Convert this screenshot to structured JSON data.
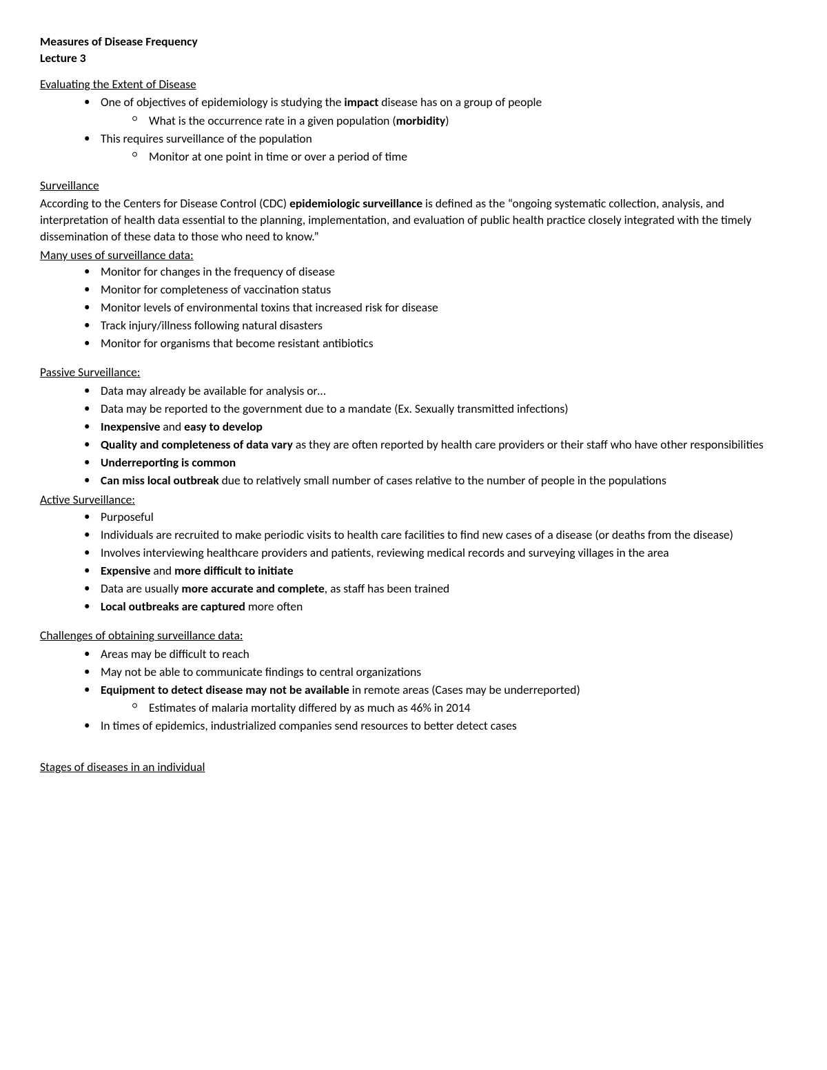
{
  "title": "Measures of Disease Frequency",
  "subtitle": "Lecture 3",
  "sections": {
    "evaluating": {
      "heading": "Evaluating the Extent of Disease",
      "b1_pre": "One of objectives of epidemiology is studying the ",
      "b1_bold": "impact",
      "b1_post": " disease has on a group of people",
      "b1_s1_pre": "What is the occurrence rate in a given population (",
      "b1_s1_bold": "morbidity",
      "b1_s1_post": ")",
      "b2": "This requires surveillance of the population",
      "b2_s1": "Monitor at one point in time or over a period of time"
    },
    "surveillance": {
      "heading": "Surveillance",
      "p_pre": "According to the Centers for Disease Control (CDC) ",
      "p_bold": "epidemiologic surveillance",
      "p_post": " is defined as the “ongoing systematic collection, analysis, and interpretation of health data essential to the planning, implementation, and evaluation of public health practice closely integrated with the timely dissemination of these data to those who need to know.”",
      "uses_heading": "Many uses of surveillance data:",
      "u1": "Monitor for changes in the frequency of disease",
      "u2": "Monitor for completeness of vaccination status",
      "u3": "Monitor levels of environmental toxins that increased risk for disease",
      "u4": "Track injury/illness following natural disasters",
      "u5": "Monitor for organisms that become resistant antibiotics"
    },
    "passive": {
      "heading": "Passive Surveillance:",
      "p1": "Data may already be available for analysis or…",
      "p2": "Data may be reported to the government due to a mandate (Ex. Sexually transmitted infections)",
      "p3_b1": "Inexpensive",
      "p3_mid": " and ",
      "p3_b2": "easy to develop",
      "p4_b": "Quality and completeness of data vary",
      "p4_post": " as they are often reported by health care providers or their staff who have other responsibilities",
      "p5": "Underreporting is common",
      "p6_b": "Can miss local outbreak",
      "p6_post": " due to relatively small number of cases relative to the number of people in the populations"
    },
    "active": {
      "heading": "Active Surveillance:",
      "a1": "Purposeful",
      "a2": "Individuals are recruited to make periodic visits to health care facilities to find new cases of a disease (or deaths from the disease)",
      "a3": "Involves interviewing healthcare providers and patients, reviewing medical records and surveying villages in the area",
      "a4_b1": "Expensive",
      "a4_mid": " and ",
      "a4_b2": "more difficult to initiate",
      "a5_pre": "Data are usually ",
      "a5_b": "more accurate and complete",
      "a5_post": ", as staff has been trained",
      "a6_b": "Local outbreaks are captured",
      "a6_post": " more often"
    },
    "challenges": {
      "heading": "Challenges of obtaining surveillance data:",
      "c1": "Areas may be difficult to reach",
      "c2": "May not be able to communicate findings to central organizations",
      "c3_b": "Equipment to detect disease may not be available",
      "c3_post": " in remote areas (Cases may be underreported)",
      "c3_s1": "Estimates of malaria mortality differed by as much as 46% in 2014",
      "c4": "In times of epidemics, industrialized companies send resources to better detect cases"
    },
    "stages": {
      "heading": "Stages of diseases in an individual"
    }
  }
}
